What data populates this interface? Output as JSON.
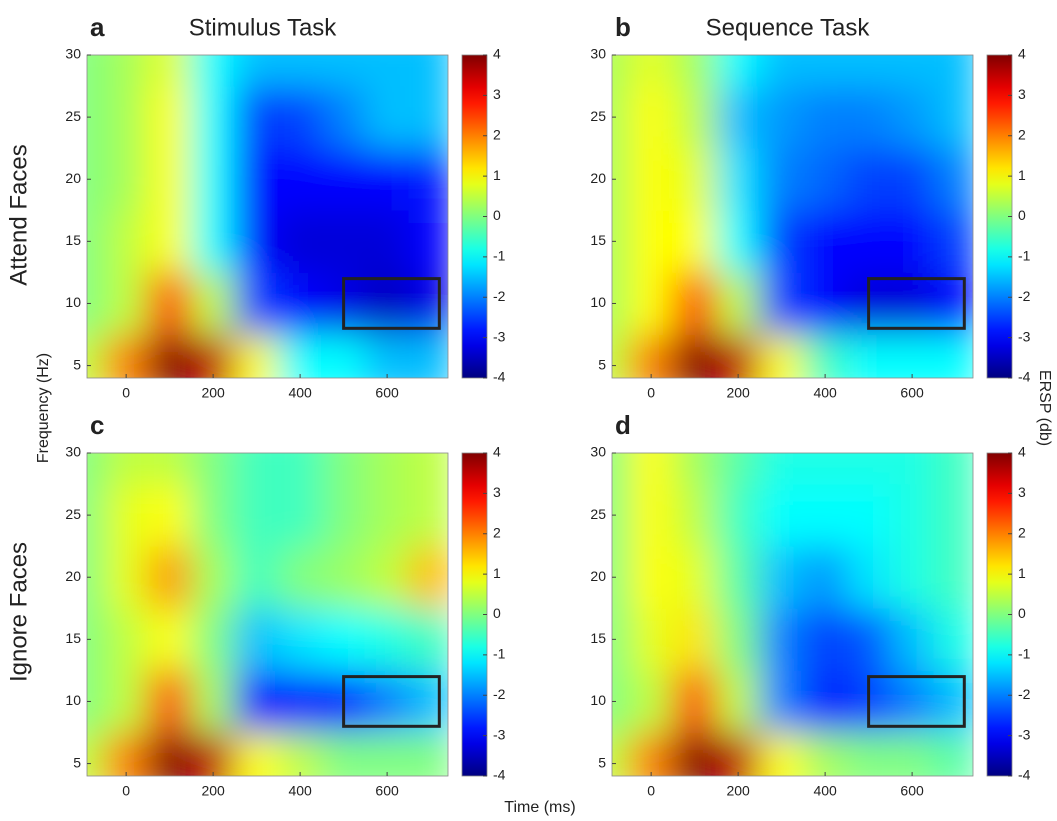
{
  "figure": {
    "y_label": "Frequency (Hz)",
    "x_label": "Time (ms)",
    "colorbar_label": "ERSP (db)",
    "row_labels": [
      "Attend Faces",
      "Ignore Faces"
    ]
  },
  "chart_data": [
    {
      "type": "heatmap",
      "label": "a",
      "title": "Stimulus Task",
      "colormap": "jet",
      "x": [
        -100,
        0,
        100,
        200,
        300,
        400,
        500,
        600,
        700
      ],
      "y": [
        5,
        10,
        15,
        20,
        25,
        30
      ],
      "z": [
        [
          0.5,
          2,
          4,
          3.5,
          1,
          -1,
          -1,
          -1.5,
          -1.5
        ],
        [
          0,
          0.5,
          2.5,
          0.5,
          -2.5,
          -3,
          -3.2,
          -3.5,
          -3.2
        ],
        [
          0,
          0.5,
          1,
          -1,
          -3,
          -3.3,
          -3.3,
          -3.3,
          -3
        ],
        [
          0,
          0.3,
          1,
          -1,
          -3,
          -3,
          -3,
          -3,
          -2.8
        ],
        [
          0,
          0.3,
          1,
          -1,
          -2.5,
          -2.5,
          -2,
          -1.5,
          -1.5
        ],
        [
          0,
          0.3,
          0.8,
          -1,
          -1.5,
          -1.5,
          -1.5,
          -1.5,
          -1.5
        ]
      ],
      "xlim": [
        -90,
        740
      ],
      "ylim": [
        4,
        30
      ],
      "xticks": [
        0,
        200,
        400,
        600
      ],
      "yticks": [
        5,
        10,
        15,
        20,
        25,
        30
      ],
      "clim": [
        -4,
        4
      ],
      "cticks": [
        -4,
        -3,
        -2,
        -1,
        0,
        1,
        2,
        3,
        4
      ],
      "box": {
        "x": [
          500,
          720
        ],
        "y": [
          8,
          12
        ]
      }
    },
    {
      "type": "heatmap",
      "label": "b",
      "title": "Sequence Task",
      "colormap": "jet",
      "x": [
        -100,
        0,
        100,
        200,
        300,
        400,
        500,
        600,
        700
      ],
      "y": [
        5,
        10,
        15,
        20,
        25,
        30
      ],
      "z": [
        [
          0.5,
          2,
          4,
          3.5,
          1,
          -0.5,
          -1,
          -1,
          -1
        ],
        [
          0.3,
          1,
          2.5,
          0.5,
          -2.5,
          -3,
          -3.3,
          -3.3,
          -3
        ],
        [
          0.3,
          1,
          1,
          -1,
          -2.5,
          -3,
          -3,
          -3,
          -2.5
        ],
        [
          0.3,
          1,
          0.8,
          -1.2,
          -2,
          -2.2,
          -2.5,
          -2.5,
          -2
        ],
        [
          0.3,
          1,
          0.5,
          -1.5,
          -1.8,
          -2,
          -2,
          -1.8,
          -1.5
        ],
        [
          0.3,
          0.8,
          0.3,
          -1,
          -1.5,
          -1.5,
          -1.5,
          -1.5,
          -1.5
        ]
      ],
      "xlim": [
        -90,
        740
      ],
      "ylim": [
        4,
        30
      ],
      "xticks": [
        0,
        200,
        400,
        600
      ],
      "yticks": [
        5,
        10,
        15,
        20,
        25,
        30
      ],
      "clim": [
        -4,
        4
      ],
      "cticks": [
        -4,
        -3,
        -2,
        -1,
        0,
        1,
        2,
        3,
        4
      ],
      "box": {
        "x": [
          500,
          720
        ],
        "y": [
          8,
          12
        ]
      }
    },
    {
      "type": "heatmap",
      "label": "c",
      "colormap": "jet",
      "x": [
        -100,
        0,
        100,
        200,
        300,
        400,
        500,
        600,
        700
      ],
      "y": [
        5,
        10,
        15,
        20,
        25,
        30
      ],
      "z": [
        [
          0.5,
          2,
          4,
          3.5,
          1,
          0.5,
          0,
          0,
          0
        ],
        [
          0,
          0.5,
          2.5,
          0.3,
          -3,
          -2.8,
          -2.8,
          -2,
          -1.5
        ],
        [
          0,
          0.5,
          1,
          0,
          -1.5,
          -1.2,
          -1,
          -0.8,
          -0.5
        ],
        [
          0,
          0.8,
          1.8,
          0.3,
          -0.5,
          0,
          0.2,
          0.5,
          1.5
        ],
        [
          0,
          0.8,
          1,
          0,
          -0.5,
          -0.5,
          0,
          0.3,
          0.5
        ],
        [
          0,
          0.5,
          0.5,
          0,
          -0.5,
          -0.5,
          0,
          0.3,
          0.5
        ]
      ],
      "xlim": [
        -90,
        740
      ],
      "ylim": [
        4,
        30
      ],
      "xticks": [
        0,
        200,
        400,
        600
      ],
      "yticks": [
        5,
        10,
        15,
        20,
        25,
        30
      ],
      "clim": [
        -4,
        4
      ],
      "cticks": [
        -4,
        -3,
        -2,
        -1,
        0,
        1,
        2,
        3,
        4
      ],
      "box": {
        "x": [
          500,
          720
        ],
        "y": [
          8,
          12
        ]
      }
    },
    {
      "type": "heatmap",
      "label": "d",
      "colormap": "jet",
      "x": [
        -100,
        0,
        100,
        200,
        300,
        400,
        500,
        600,
        700
      ],
      "y": [
        5,
        10,
        15,
        20,
        25,
        30
      ],
      "z": [
        [
          0.5,
          2,
          4,
          3.5,
          1,
          0.3,
          0,
          0,
          -0.3
        ],
        [
          0,
          0.5,
          2.5,
          0.5,
          -2,
          -2.8,
          -2.5,
          -2,
          -1.5
        ],
        [
          0,
          0.8,
          1.2,
          0,
          -2,
          -2.5,
          -2.3,
          -1.5,
          -0.8
        ],
        [
          0,
          1,
          0.8,
          -0.3,
          -1.5,
          -1.8,
          -1.2,
          -0.8,
          -0.5
        ],
        [
          0,
          1,
          0.5,
          -0.5,
          -1,
          -1,
          -1,
          -0.8,
          -0.5
        ],
        [
          0,
          1,
          0.3,
          -0.3,
          -0.8,
          -0.8,
          -0.8,
          -0.8,
          -0.5
        ]
      ],
      "xlim": [
        -90,
        740
      ],
      "ylim": [
        4,
        30
      ],
      "xticks": [
        0,
        200,
        400,
        600
      ],
      "yticks": [
        5,
        10,
        15,
        20,
        25,
        30
      ],
      "clim": [
        -4,
        4
      ],
      "cticks": [
        -4,
        -3,
        -2,
        -1,
        0,
        1,
        2,
        3,
        4
      ],
      "box": {
        "x": [
          500,
          720
        ],
        "y": [
          8,
          12
        ]
      }
    }
  ]
}
